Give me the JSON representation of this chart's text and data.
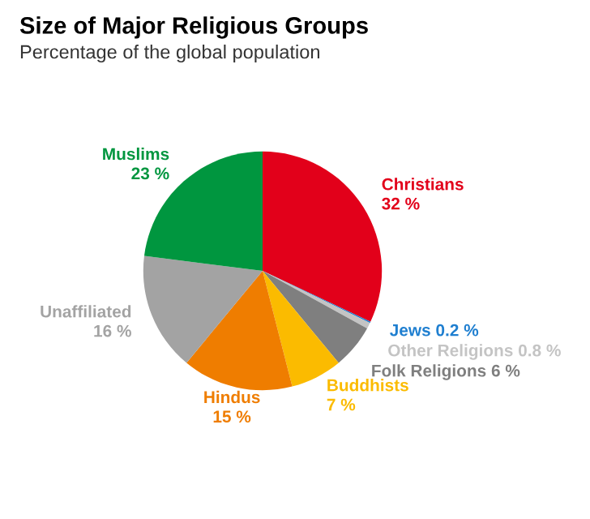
{
  "chart_data": {
    "type": "pie",
    "title": "Size of Major Religious Groups",
    "subtitle": "Percentage of the global population",
    "categories": [
      "Christians",
      "Jews",
      "Other Religions",
      "Folk Religions",
      "Buddhists",
      "Hindus",
      "Unaffiliated",
      "Muslims"
    ],
    "values": [
      32,
      0.2,
      0.8,
      6,
      7,
      15,
      16,
      23
    ],
    "value_labels": [
      "32 %",
      "0.2 %",
      "0.8 %",
      "6 %",
      "7 %",
      "15 %",
      "16 %",
      "23 %"
    ],
    "colors": [
      "#e2001a",
      "#1f7fd0",
      "#c4c4c4",
      "#7f7f7f",
      "#fbbb00",
      "#ef7d00",
      "#a3a3a3",
      "#00963f"
    ],
    "legend": false
  }
}
